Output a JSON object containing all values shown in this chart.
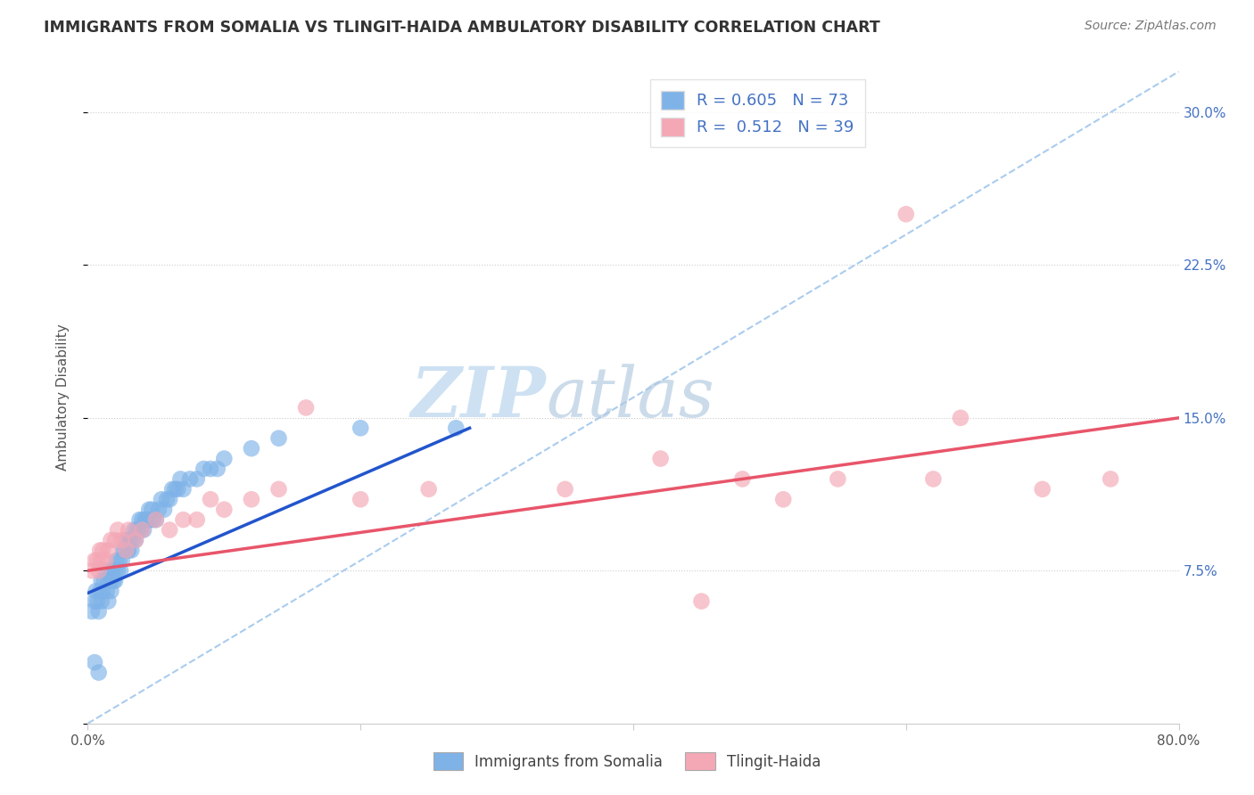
{
  "title": "IMMIGRANTS FROM SOMALIA VS TLINGIT-HAIDA AMBULATORY DISABILITY CORRELATION CHART",
  "source": "Source: ZipAtlas.com",
  "ylabel": "Ambulatory Disability",
  "xlim": [
    0.0,
    0.8
  ],
  "ylim": [
    0.0,
    0.32
  ],
  "xticks": [
    0.0,
    0.2,
    0.4,
    0.6,
    0.8
  ],
  "xticklabels": [
    "0.0%",
    "",
    "",
    "",
    "80.0%"
  ],
  "yticks": [
    0.0,
    0.075,
    0.15,
    0.225,
    0.3
  ],
  "yticklabels": [
    "",
    "7.5%",
    "15.0%",
    "22.5%",
    "30.0%"
  ],
  "legend_labels": [
    "Immigrants from Somalia",
    "Tlingit-Haida"
  ],
  "somalia_R": "0.605",
  "somalia_N": "73",
  "tlingit_R": "0.512",
  "tlingit_N": "39",
  "somalia_color": "#7FB3E8",
  "tlingit_color": "#F4A7B5",
  "somalia_line_color": "#2255CC",
  "tlingit_line_color": "#E8556A",
  "dashed_line_color": "#AACCEE",
  "background_color": "#FFFFFF",
  "grid_color": "#CCCCCC",
  "watermark_zip": "ZIP",
  "watermark_atlas": "atlas",
  "somalia_scatter_x": [
    0.003,
    0.005,
    0.006,
    0.007,
    0.008,
    0.009,
    0.01,
    0.01,
    0.011,
    0.012,
    0.013,
    0.014,
    0.015,
    0.015,
    0.016,
    0.017,
    0.017,
    0.018,
    0.019,
    0.02,
    0.02,
    0.021,
    0.022,
    0.023,
    0.024,
    0.025,
    0.026,
    0.027,
    0.028,
    0.029,
    0.03,
    0.03,
    0.031,
    0.032,
    0.033,
    0.034,
    0.035,
    0.036,
    0.037,
    0.038,
    0.039,
    0.04,
    0.041,
    0.042,
    0.043,
    0.044,
    0.045,
    0.046,
    0.047,
    0.048,
    0.05,
    0.052,
    0.054,
    0.056,
    0.058,
    0.06,
    0.062,
    0.064,
    0.066,
    0.068,
    0.07,
    0.075,
    0.08,
    0.085,
    0.09,
    0.095,
    0.1,
    0.12,
    0.14,
    0.2,
    0.27,
    0.005,
    0.008
  ],
  "somalia_scatter_y": [
    0.055,
    0.06,
    0.065,
    0.06,
    0.055,
    0.065,
    0.07,
    0.06,
    0.065,
    0.07,
    0.075,
    0.065,
    0.07,
    0.06,
    0.075,
    0.065,
    0.07,
    0.075,
    0.07,
    0.07,
    0.075,
    0.08,
    0.075,
    0.08,
    0.075,
    0.08,
    0.085,
    0.085,
    0.09,
    0.085,
    0.085,
    0.09,
    0.09,
    0.085,
    0.09,
    0.095,
    0.09,
    0.095,
    0.095,
    0.1,
    0.095,
    0.1,
    0.095,
    0.1,
    0.1,
    0.1,
    0.105,
    0.1,
    0.105,
    0.1,
    0.1,
    0.105,
    0.11,
    0.105,
    0.11,
    0.11,
    0.115,
    0.115,
    0.115,
    0.12,
    0.115,
    0.12,
    0.12,
    0.125,
    0.125,
    0.125,
    0.13,
    0.135,
    0.14,
    0.145,
    0.145,
    0.03,
    0.025
  ],
  "tlingit_scatter_x": [
    0.003,
    0.005,
    0.007,
    0.008,
    0.009,
    0.01,
    0.011,
    0.013,
    0.015,
    0.017,
    0.02,
    0.022,
    0.025,
    0.028,
    0.03,
    0.035,
    0.04,
    0.05,
    0.06,
    0.07,
    0.08,
    0.09,
    0.1,
    0.12,
    0.14,
    0.16,
    0.2,
    0.25,
    0.35,
    0.42,
    0.45,
    0.48,
    0.51,
    0.55,
    0.6,
    0.62,
    0.64,
    0.7,
    0.75
  ],
  "tlingit_scatter_y": [
    0.075,
    0.08,
    0.08,
    0.075,
    0.085,
    0.08,
    0.085,
    0.08,
    0.085,
    0.09,
    0.09,
    0.095,
    0.09,
    0.085,
    0.095,
    0.09,
    0.095,
    0.1,
    0.095,
    0.1,
    0.1,
    0.11,
    0.105,
    0.11,
    0.115,
    0.155,
    0.11,
    0.115,
    0.115,
    0.13,
    0.06,
    0.12,
    0.11,
    0.12,
    0.25,
    0.12,
    0.15,
    0.115,
    0.12
  ],
  "somalia_line_x": [
    0.0,
    0.28
  ],
  "somalia_line_y": [
    0.064,
    0.145
  ],
  "tlingit_line_x": [
    0.0,
    0.8
  ],
  "tlingit_line_y": [
    0.075,
    0.15
  ],
  "dashed_line_x": [
    0.0,
    0.8
  ],
  "dashed_line_y": [
    0.0,
    0.32
  ]
}
